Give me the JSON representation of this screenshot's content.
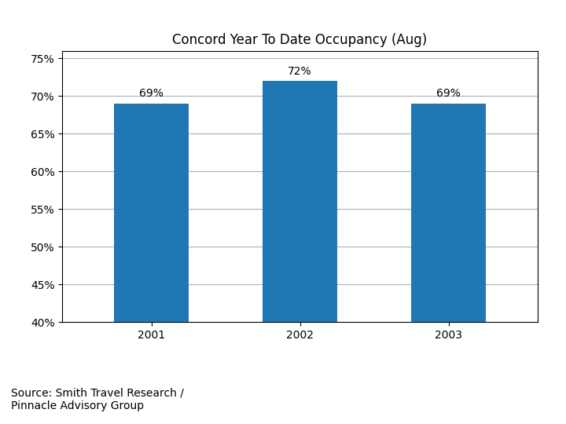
{
  "chart_data": {
    "type": "bar",
    "title": "Concord Year To Date Occupancy (Aug)",
    "categories": [
      "2001",
      "2002",
      "2003"
    ],
    "values": [
      69,
      72,
      69
    ],
    "value_labels": [
      "69%",
      "72%",
      "69%"
    ],
    "data_labels": true,
    "ylim": [
      40,
      76
    ],
    "yticks": [
      {
        "value": 40,
        "label": "40%"
      },
      {
        "value": 45,
        "label": "45%"
      },
      {
        "value": 50,
        "label": "50%"
      },
      {
        "value": 55,
        "label": "55%"
      },
      {
        "value": 60,
        "label": "60%"
      },
      {
        "value": 65,
        "label": "65%"
      },
      {
        "value": 70,
        "label": "70%"
      },
      {
        "value": 75,
        "label": "75%"
      }
    ],
    "grid": true,
    "annotations": [
      "Source: Smith Travel Research /\nPinnacle Advisory Group"
    ]
  }
}
